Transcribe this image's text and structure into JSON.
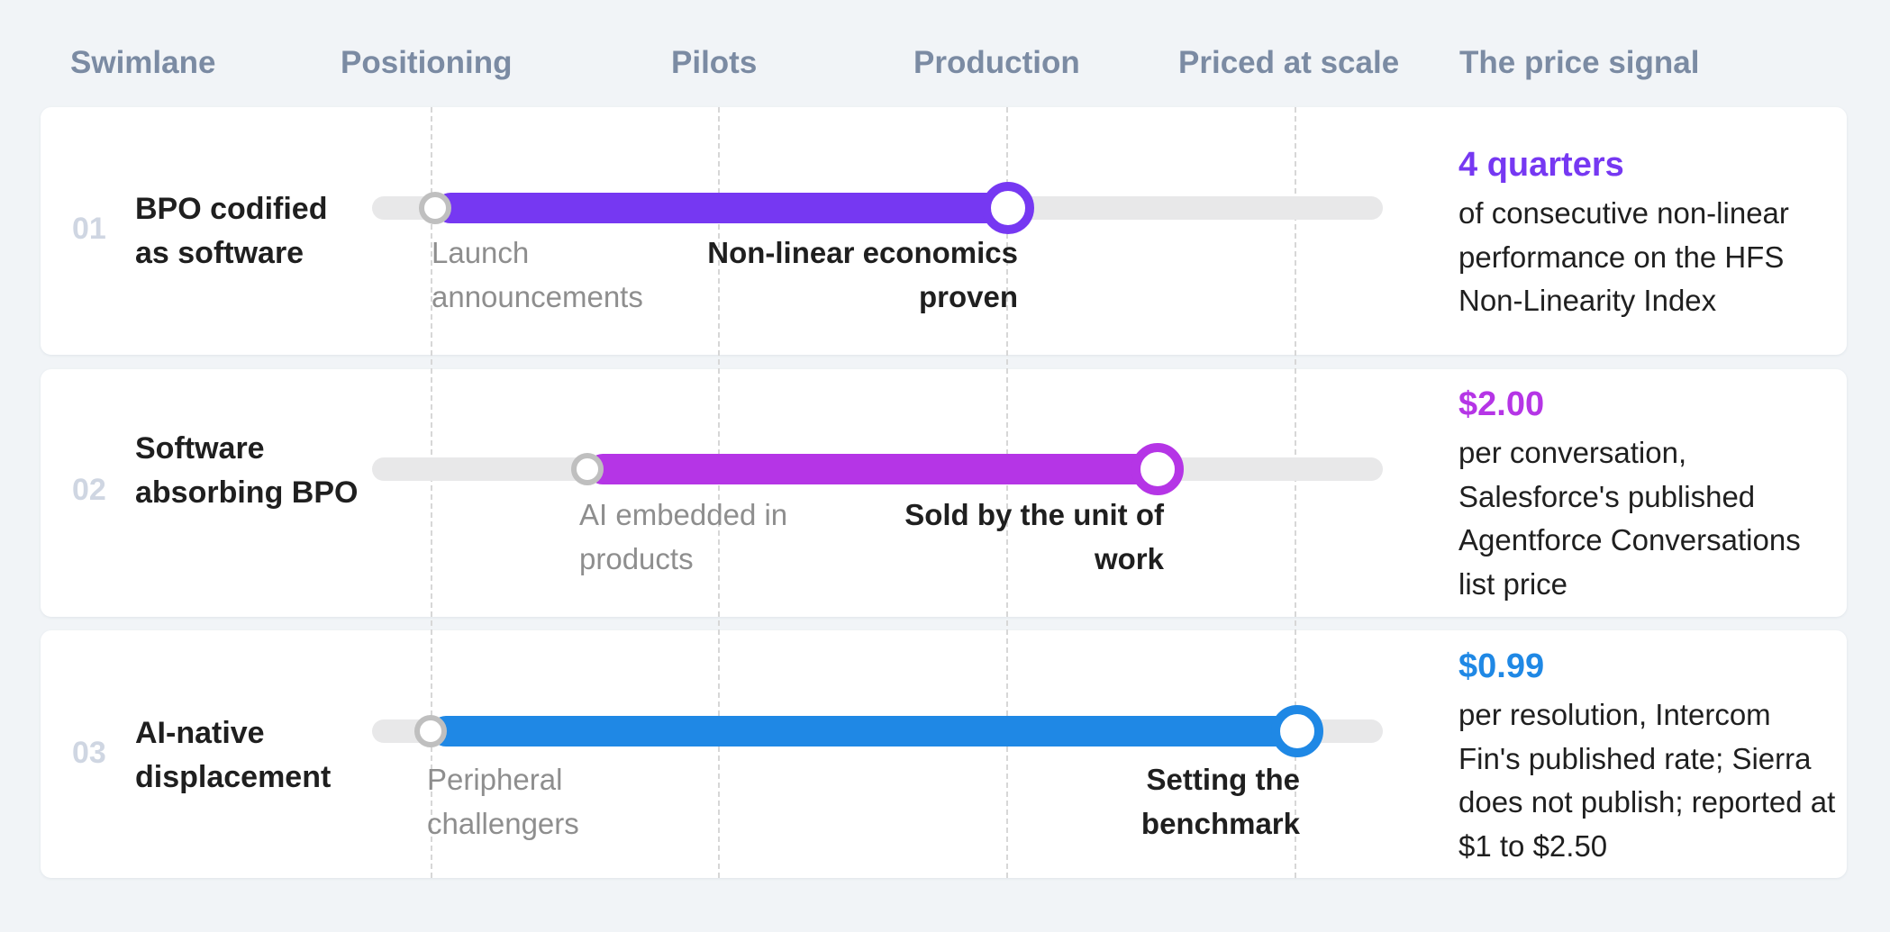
{
  "columns": {
    "swimlane": "Swimlane",
    "positioning": "Positioning",
    "pilots": "Pilots",
    "production": "Production",
    "priced_at_scale": "Priced at scale",
    "price_signal": "The price signal"
  },
  "lanes": [
    {
      "number": "01",
      "name": "BPO codified as software",
      "start_stage": "Positioning",
      "end_stage": "Production",
      "start_label": "Launch announcements",
      "end_label": "Non-linear economics proven",
      "color": "#7638f2",
      "signal_value": "4 quarters",
      "signal_desc": "of consecutive non-linear performance on the HFS Non-Linearity Index"
    },
    {
      "number": "02",
      "name": "Software absorbing BPO",
      "start_stage": "Positioning–Pilots",
      "end_stage": "Production–Priced at scale",
      "start_label": "AI embedded in products",
      "end_label": "Sold by the unit of work",
      "color": "#b535e6",
      "signal_value": "$2.00",
      "signal_desc": "per conversation, Salesforce's published Agentforce Conversations list price"
    },
    {
      "number": "03",
      "name": "AI-native displacement",
      "start_stage": "Positioning",
      "end_stage": "Priced at scale",
      "start_label": "Peripheral challengers",
      "end_label": "Setting the benchmark",
      "color": "#1f88e5",
      "signal_value": "$0.99",
      "signal_desc": "per resolution, Intercom Fin's published rate; Sierra does not publish; reported at $1 to $2.50"
    }
  ]
}
